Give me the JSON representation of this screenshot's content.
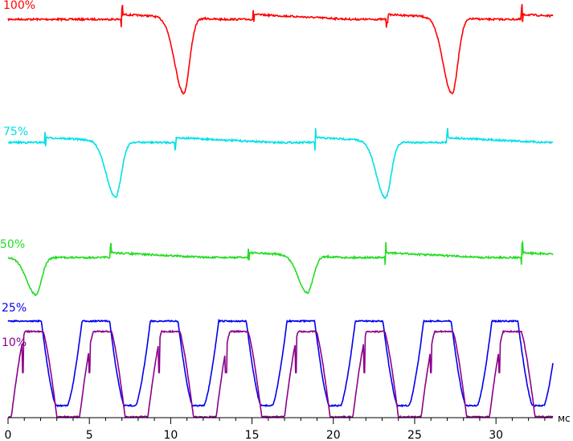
{
  "chart_data": {
    "type": "line",
    "xlabel": "мс",
    "xlim": [
      0,
      33.5
    ],
    "x_ticks": [
      "0",
      "5",
      "10",
      "15",
      "20",
      "25",
      "30"
    ],
    "x_tick_values": [
      0,
      5,
      10,
      15,
      20,
      25,
      30
    ],
    "grid": false,
    "series": [
      {
        "name": "100%",
        "color": "#ff0000",
        "pattern": "dip",
        "baseline": 0.0,
        "dip_depth": 1.0,
        "dip_centers": [
          10.8,
          27.3
        ],
        "backlight_steps": [
          7.0,
          15.1,
          23.3,
          31.6
        ]
      },
      {
        "name": "75%",
        "color": "#00e0e8",
        "pattern": "dip",
        "baseline": 0.0,
        "dip_depth": 1.0,
        "dip_centers": [
          6.6,
          23.2
        ],
        "backlight_steps": [
          2.3,
          10.3,
          18.9,
          27.0
        ]
      },
      {
        "name": "50%",
        "color": "#22dd22",
        "pattern": "dip",
        "baseline": 0.0,
        "dip_depth": 1.0,
        "dip_centers": [
          1.7,
          18.4
        ],
        "backlight_steps": [
          6.3,
          14.8,
          23.2,
          31.6
        ]
      },
      {
        "name": "25%",
        "color": "#0000ee",
        "pattern": "pwm",
        "troughs": [
          3.3,
          7.5,
          11.7,
          15.9,
          20.1,
          24.3,
          28.5,
          32.6
        ],
        "low": 0.0,
        "high": 1.0
      },
      {
        "name": "10%",
        "color": "#8b008b",
        "pattern": "pwm_pulse",
        "pulse_centers": [
          1.6,
          5.8,
          10.0,
          14.2,
          18.4,
          22.6,
          26.8,
          31.0
        ],
        "spike_positions": [
          0.9,
          5.0,
          9.3,
          13.4,
          17.7,
          21.9,
          26.0,
          30.2
        ]
      }
    ]
  }
}
